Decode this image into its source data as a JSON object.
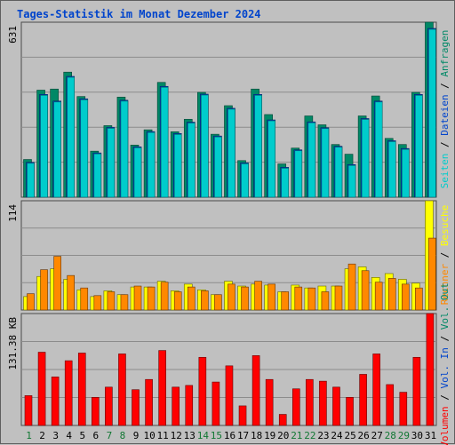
{
  "title": "Tages-Statistik im Monat Dezember 2024",
  "colors": {
    "background": "#c0c0c0",
    "grid": "#8c8c8c",
    "title": "#0044cc",
    "hits": "#008866",
    "files": "#0044cc",
    "pages": "#00cccc",
    "visits": "#ffff00",
    "sites": "#ff8800",
    "kbytes": "#ff0000",
    "weekday": "#000000",
    "weekend": "#117733"
  },
  "chart_data": [
    {
      "type": "bar",
      "name": "hits-files-pages",
      "ymax_label": "631",
      "ylim": [
        0,
        631
      ],
      "categories": [
        "1",
        "2",
        "3",
        "4",
        "5",
        "6",
        "7",
        "8",
        "9",
        "10",
        "11",
        "12",
        "13",
        "14",
        "15",
        "16",
        "17",
        "18",
        "19",
        "20",
        "21",
        "22",
        "23",
        "24",
        "25",
        "26",
        "27",
        "28",
        "29",
        "30",
        "31"
      ],
      "right_labels": [
        "Anfragen",
        "Dateien",
        "Seiten"
      ],
      "series": [
        {
          "name": "Anfragen",
          "values": [
            136,
            386,
            390,
            451,
            363,
            166,
            258,
            361,
            188,
            243,
            414,
            236,
            281,
            378,
            227,
            330,
            132,
            390,
            298,
            120,
            177,
            293,
            261,
            190,
            155,
            293,
            365,
            212,
            190,
            378,
            631
          ]
        },
        {
          "name": "Dateien",
          "values": [
            132,
            377,
            353,
            442,
            361,
            166,
            258,
            356,
            188,
            243,
            406,
            236,
            277,
            378,
            227,
            327,
            130,
            377,
            285,
            114,
            177,
            278,
            257,
            190,
            124,
            290,
            353,
            210,
            182,
            377,
            615
          ]
        }
      ]
    },
    {
      "type": "bar",
      "name": "visits-sites",
      "ymax_label": "114",
      "ylim": [
        0,
        114
      ],
      "categories": [
        "1",
        "2",
        "3",
        "4",
        "5",
        "6",
        "7",
        "8",
        "9",
        "10",
        "11",
        "12",
        "13",
        "14",
        "15",
        "16",
        "17",
        "18",
        "19",
        "20",
        "21",
        "22",
        "23",
        "24",
        "25",
        "26",
        "27",
        "28",
        "29",
        "30",
        "31"
      ],
      "right_labels": [
        "Besuche",
        "Rechner"
      ],
      "series": [
        {
          "name": "Besuche",
          "values": [
            14,
            35,
            43,
            32,
            21,
            14,
            20,
            16,
            24,
            24,
            30,
            20,
            27,
            21,
            16,
            30,
            25,
            27,
            26,
            19,
            26,
            23,
            25,
            25,
            43,
            45,
            34,
            38,
            32,
            28,
            114
          ]
        },
        {
          "name": "Rechner",
          "values": [
            17,
            42,
            56,
            36,
            23,
            15,
            19,
            16,
            25,
            24,
            29,
            19,
            24,
            20,
            16,
            27,
            24,
            30,
            27,
            19,
            24,
            23,
            19,
            25,
            48,
            41,
            29,
            33,
            27,
            23,
            75
          ]
        }
      ]
    },
    {
      "type": "bar",
      "name": "kbytes",
      "ymax_label": "131.38 KB",
      "ylim": [
        0,
        131.38
      ],
      "categories": [
        "1",
        "2",
        "3",
        "4",
        "5",
        "6",
        "7",
        "8",
        "9",
        "10",
        "11",
        "12",
        "13",
        "14",
        "15",
        "16",
        "17",
        "18",
        "19",
        "20",
        "21",
        "22",
        "23",
        "24",
        "25",
        "26",
        "27",
        "28",
        "29",
        "30",
        "31"
      ],
      "right_labels": [
        "Volumen",
        "Vol. In",
        "Vol. Out"
      ],
      "series": [
        {
          "name": "Volumen",
          "values": [
            35,
            86,
            57,
            76,
            85,
            33,
            45,
            84,
            42,
            54,
            88,
            45,
            47,
            80,
            51,
            70,
            23,
            82,
            54,
            13,
            43,
            54,
            52,
            45,
            33,
            60,
            84,
            48,
            39,
            80,
            131.38
          ]
        }
      ]
    }
  ],
  "day_colors": [
    "weekend",
    "weekday",
    "weekday",
    "weekday",
    "weekday",
    "weekday",
    "weekend",
    "weekend",
    "weekday",
    "weekday",
    "weekday",
    "weekday",
    "weekday",
    "weekend",
    "weekend",
    "weekday",
    "weekday",
    "weekday",
    "weekday",
    "weekday",
    "weekend",
    "weekend",
    "weekday",
    "weekday",
    "weekday",
    "weekday",
    "weekday",
    "weekend",
    "weekend",
    "weekday",
    "weekday"
  ]
}
